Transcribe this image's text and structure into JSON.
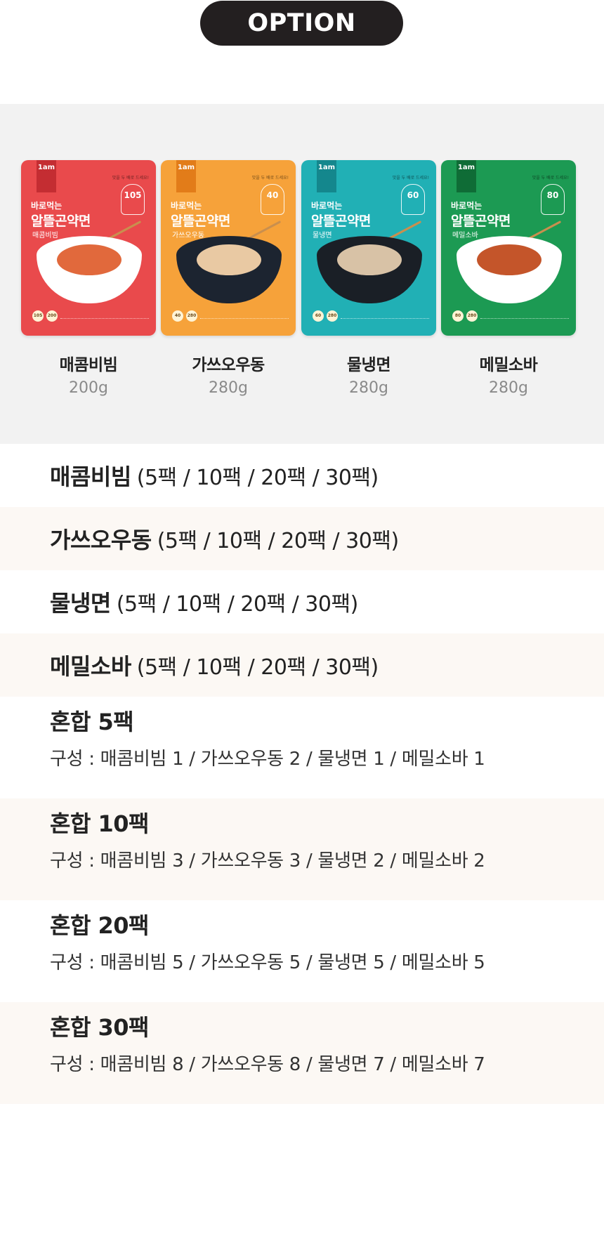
{
  "header": {
    "title": "OPTION"
  },
  "products": [
    {
      "name": "매콤비빔",
      "weight": "200g",
      "flavor": "매콤비빔",
      "kcal": "105",
      "badges": [
        "105",
        "200"
      ],
      "color": "#e94a4c",
      "logo_color": "#c42d32",
      "bowl": "#ffffff",
      "noodle": "#e1693c"
    },
    {
      "name": "가쓰오우동",
      "weight": "280g",
      "flavor": "가쓰오우동",
      "kcal": "40",
      "badges": [
        "40",
        "280"
      ],
      "color": "#f6a23a",
      "logo_color": "#e27c19",
      "bowl": "#1c2430",
      "noodle": "#e9c9a3"
    },
    {
      "name": "물냉면",
      "weight": "280g",
      "flavor": "물냉면",
      "kcal": "60",
      "badges": [
        "60",
        "280"
      ],
      "color": "#21b0b5",
      "logo_color": "#14878d",
      "bowl": "#1a1f26",
      "noodle": "#d8c2a6"
    },
    {
      "name": "메밀소바",
      "weight": "280g",
      "flavor": "메밀소바",
      "kcal": "80",
      "badges": [
        "80",
        "280"
      ],
      "color": "#1c9a53",
      "logo_color": "#0f6c36",
      "bowl": "#ffffff",
      "noodle": "#c4552a"
    }
  ],
  "pouch_text": {
    "tagline": "바로먹는",
    "brand": "알뜰곤약면",
    "logo": "1am",
    "topnote": "맛을 두 배로 드세요!"
  },
  "options": [
    {
      "name": "매콤비빔",
      "packs": "(5팩 / 10팩 / 20팩 / 30팩)"
    },
    {
      "name": "가쓰오우동",
      "packs": "(5팩 / 10팩 / 20팩 / 30팩)"
    },
    {
      "name": "물냉면",
      "packs": "(5팩 / 10팩 / 20팩 / 30팩)"
    },
    {
      "name": "메밀소바",
      "packs": "(5팩 / 10팩 / 20팩 / 30팩)"
    }
  ],
  "mixes": [
    {
      "title": "혼합 5팩",
      "composition": "구성 : 매콤비빔 1 / 가쓰오우동 2 / 물냉면 1 / 메밀소바 1"
    },
    {
      "title": "혼합 10팩",
      "composition": "구성 : 매콤비빔 3 / 가쓰오우동 3 / 물냉면 2 / 메밀소바 2"
    },
    {
      "title": "혼합 20팩",
      "composition": "구성 : 매콤비빔 5 / 가쓰오우동 5 / 물냉면 5 / 메밀소바 5"
    },
    {
      "title": "혼합 30팩",
      "composition": "구성 : 매콤비빔 8 / 가쓰오우동 8 / 물냉면 7 / 메밀소바 7"
    }
  ],
  "colors": {
    "pill": "#231f20",
    "band": "#f2f2f2",
    "alt_row": "#fcf8f4",
    "weight_text": "#8a8a8a"
  }
}
